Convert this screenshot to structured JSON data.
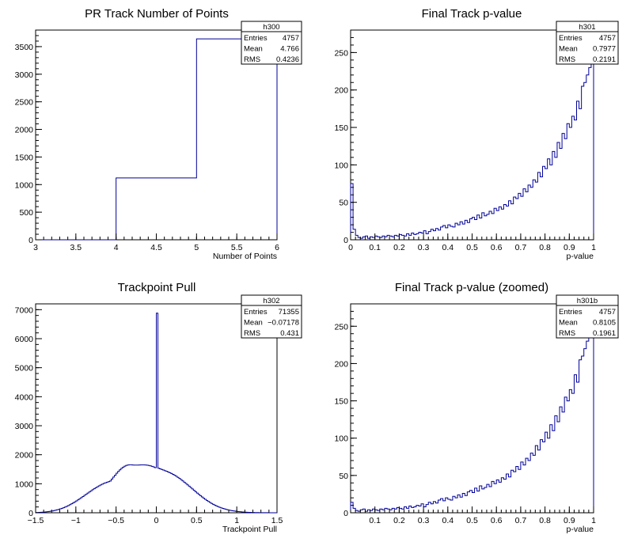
{
  "chart_data": [
    {
      "id": "h300",
      "type": "histogram",
      "title": "PR Track Number of Points",
      "xlabel": "Number of Points",
      "ylabel": "",
      "xlim": [
        3,
        6
      ],
      "ylim": [
        0,
        3800
      ],
      "xticks": [
        3,
        3.5,
        4,
        4.5,
        5,
        5.5,
        6
      ],
      "xtick_labels": [
        "3",
        "3.5",
        "4",
        "4.5",
        "5",
        "5.5",
        "6"
      ],
      "yticks": [
        0,
        500,
        1000,
        1500,
        2000,
        2500,
        3000,
        3500
      ],
      "ytick_labels": [
        "0",
        "500",
        "1000",
        "1500",
        "2000",
        "2500",
        "3000",
        "3500"
      ],
      "bin_edges": [
        3,
        4,
        5,
        6
      ],
      "counts": [
        0,
        1120,
        3640
      ],
      "stats": {
        "name": "h300",
        "rows": [
          {
            "label": "Entries",
            "value": "4757"
          },
          {
            "label": "Mean",
            "value": "4.766"
          },
          {
            "label": "RMS",
            "value": "0.4236"
          }
        ]
      }
    },
    {
      "id": "h301",
      "type": "histogram",
      "title": "Final Track p-value",
      "xlabel": "p-value",
      "ylabel": "",
      "xlim": [
        0,
        1
      ],
      "ylim": [
        0,
        280
      ],
      "xticks": [
        0,
        0.1,
        0.2,
        0.3,
        0.4,
        0.5,
        0.6,
        0.7,
        0.8,
        0.9,
        1
      ],
      "xtick_labels": [
        "0",
        "0.1",
        "0.2",
        "0.3",
        "0.4",
        "0.5",
        "0.6",
        "0.7",
        "0.8",
        "0.9",
        "1"
      ],
      "yticks": [
        0,
        50,
        100,
        150,
        200,
        250
      ],
      "ytick_labels": [
        "0",
        "50",
        "100",
        "150",
        "200",
        "250"
      ],
      "bin_edges_range": [
        0,
        1
      ],
      "counts": [
        75,
        14,
        6,
        3,
        2,
        4,
        5,
        2,
        4,
        3,
        5,
        4,
        3,
        5,
        4,
        6,
        5,
        4,
        6,
        5,
        7,
        6,
        5,
        8,
        6,
        9,
        7,
        8,
        10,
        9,
        12,
        8,
        11,
        14,
        12,
        15,
        13,
        17,
        19,
        16,
        20,
        18,
        17,
        22,
        20,
        24,
        21,
        26,
        23,
        28,
        30,
        27,
        33,
        29,
        36,
        32,
        34,
        38,
        35,
        42,
        39,
        44,
        41,
        47,
        45,
        52,
        48,
        57,
        55,
        62,
        58,
        68,
        64,
        73,
        70,
        80,
        77,
        90,
        84,
        98,
        95,
        108,
        100,
        118,
        110,
        130,
        122,
        142,
        135,
        155,
        150,
        165,
        160,
        185,
        175,
        205,
        210,
        220,
        230,
        240
      ],
      "stats": {
        "name": "h301",
        "rows": [
          {
            "label": "Entries",
            "value": "4757"
          },
          {
            "label": "Mean",
            "value": "0.7977"
          },
          {
            "label": "RMS",
            "value": "0.2191"
          }
        ]
      }
    },
    {
      "id": "h302",
      "type": "histogram",
      "title": "Trackpoint Pull",
      "xlabel": "Trackpoint Pull",
      "ylabel": "",
      "xlim": [
        -1.5,
        1.5
      ],
      "ylim": [
        0,
        7200
      ],
      "xticks": [
        -1.5,
        -1,
        -0.5,
        0,
        0.5,
        1,
        1.5
      ],
      "xtick_labels": [
        "−1.5",
        "−1",
        "−0.5",
        "0",
        "0.5",
        "1",
        "1.5"
      ],
      "yticks": [
        0,
        1000,
        2000,
        3000,
        4000,
        5000,
        6000,
        7000
      ],
      "ytick_labels": [
        "0",
        "1000",
        "2000",
        "3000",
        "4000",
        "5000",
        "6000",
        "7000"
      ],
      "bin_edges_range": [
        -1.5,
        1.5
      ],
      "counts": [
        9,
        11,
        14,
        17,
        21,
        25,
        30,
        37,
        44,
        53,
        63,
        74,
        87,
        101,
        117,
        135,
        154,
        175,
        198,
        223,
        250,
        279,
        309,
        341,
        375,
        410,
        446,
        483,
        521,
        560,
        599,
        639,
        678,
        717,
        755,
        793,
        829,
        864,
        897,
        929,
        958,
        986,
        1011,
        1034,
        1054,
        1071,
        1093,
        1161,
        1230,
        1297,
        1363,
        1425,
        1481,
        1531,
        1573,
        1607,
        1632,
        1648,
        1655,
        1654,
        1648,
        1643,
        1642,
        1643,
        1646,
        1649,
        1651,
        1651,
        1648,
        1640,
        1630,
        1615,
        1598,
        1578,
        1556,
        6880,
        1534,
        1513,
        1492,
        1471,
        1450,
        1428,
        1405,
        1380,
        1353,
        1324,
        1292,
        1258,
        1221,
        1182,
        1142,
        1099,
        1055,
        1010,
        963,
        916,
        869,
        821,
        774,
        727,
        680,
        634,
        590,
        546,
        504,
        464,
        425,
        388,
        354,
        321,
        291,
        262,
        236,
        211,
        189,
        168,
        149,
        132,
        116,
        102,
        90,
        78,
        68,
        60,
        52,
        45,
        39,
        33,
        29,
        25,
        21,
        18,
        15,
        13,
        11,
        9,
        8,
        7,
        6,
        5,
        4,
        3,
        3,
        2,
        2,
        1,
        1,
        1,
        1,
        0
      ],
      "stats": {
        "name": "h302",
        "rows": [
          {
            "label": "Entries",
            "value": "71355"
          },
          {
            "label": "Mean",
            "value": "−0.07178"
          },
          {
            "label": "RMS",
            "value": "0.431"
          }
        ]
      }
    },
    {
      "id": "h301b",
      "type": "histogram",
      "title": "Final Track p-value (zoomed)",
      "xlabel": "p-value",
      "ylabel": "",
      "xlim": [
        0,
        1
      ],
      "ylim": [
        0,
        280
      ],
      "xticks": [
        0.1,
        0.2,
        0.3,
        0.4,
        0.5,
        0.6,
        0.7,
        0.8,
        0.9,
        1
      ],
      "xtick_labels": [
        "0.1",
        "0.2",
        "0.3",
        "0.4",
        "0.5",
        "0.6",
        "0.7",
        "0.8",
        "0.9",
        "1"
      ],
      "yticks": [
        0,
        50,
        100,
        150,
        200,
        250
      ],
      "ytick_labels": [
        "0",
        "50",
        "100",
        "150",
        "200",
        "250"
      ],
      "bin_edges_range": [
        0,
        1
      ],
      "counts": [
        14,
        6,
        3,
        2,
        4,
        5,
        2,
        4,
        3,
        5,
        4,
        3,
        5,
        4,
        6,
        5,
        4,
        6,
        5,
        7,
        6,
        5,
        8,
        6,
        9,
        7,
        8,
        10,
        9,
        12,
        8,
        11,
        14,
        12,
        15,
        13,
        17,
        19,
        16,
        20,
        18,
        17,
        22,
        20,
        24,
        21,
        26,
        23,
        28,
        30,
        27,
        33,
        29,
        36,
        32,
        34,
        38,
        35,
        42,
        39,
        44,
        41,
        47,
        45,
        52,
        48,
        57,
        55,
        62,
        58,
        68,
        64,
        73,
        70,
        80,
        77,
        90,
        84,
        98,
        95,
        108,
        100,
        118,
        110,
        130,
        122,
        142,
        135,
        155,
        150,
        165,
        160,
        185,
        175,
        205,
        210,
        220,
        230,
        240,
        240
      ],
      "stats": {
        "name": "h301b",
        "rows": [
          {
            "label": "Entries",
            "value": "4757"
          },
          {
            "label": "Mean",
            "value": "0.8105"
          },
          {
            "label": "RMS",
            "value": "0.1961"
          }
        ]
      }
    }
  ]
}
